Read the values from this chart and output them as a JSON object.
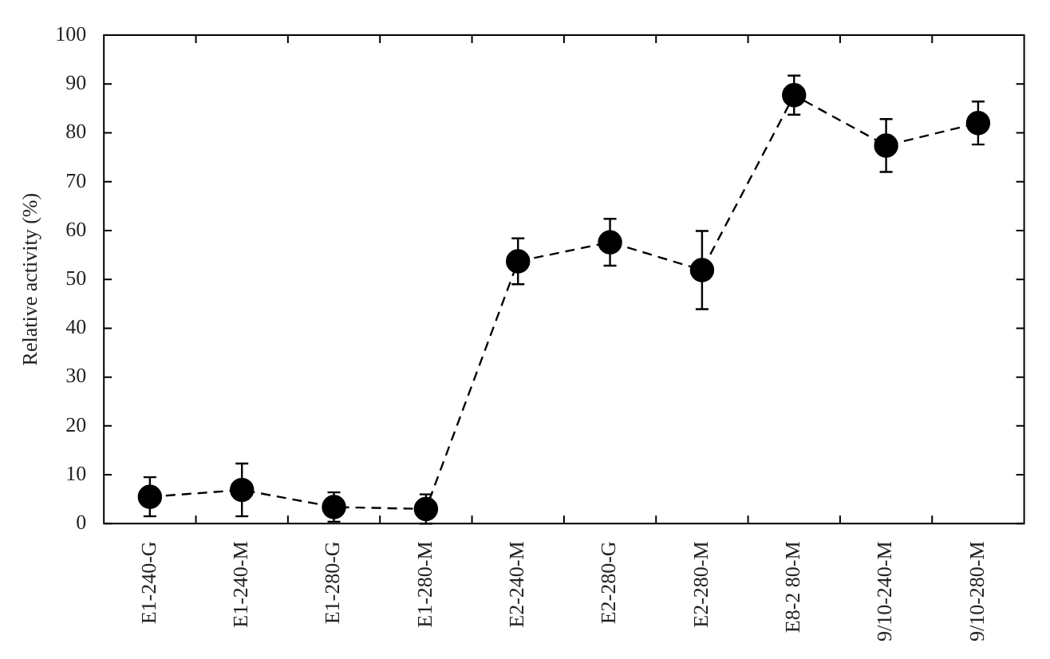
{
  "chart_data": {
    "type": "line",
    "ylabel": "Relative activity (%)",
    "categories": [
      "E1-240-G",
      "E1-240-M",
      "E1-280-G",
      "E1-280-M",
      "E2-240-M",
      "E2-280-G",
      "E2-280-M",
      "E8-2 80-M",
      "9/10-240-M",
      "9/10-280-M"
    ],
    "series": [
      {
        "color": "#000000",
        "values": [
          5.5,
          6.9,
          3.4,
          3,
          53.7,
          57.6,
          51.9,
          87.7,
          77.4,
          82
        ],
        "errors": [
          4,
          5.4,
          3,
          3,
          4.7,
          4.8,
          8,
          4,
          5.4,
          4.4
        ]
      }
    ],
    "ylim": [
      0,
      100
    ],
    "yticks": [
      0,
      10,
      20,
      30,
      40,
      50,
      60,
      70,
      80,
      90,
      100
    ],
    "marker": "circle",
    "line_style": "dashed"
  }
}
